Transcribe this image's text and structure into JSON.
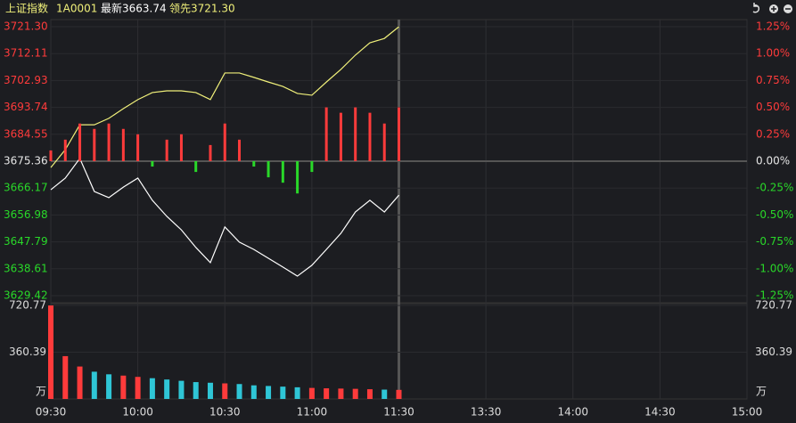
{
  "header": {
    "name": "上证指数",
    "code": "1A0001",
    "latest": "最新3663.74",
    "lead": "领先3721.30"
  },
  "chart_data": [
    {
      "type": "line",
      "x": [
        "09:30",
        "09:35",
        "09:40",
        "09:45",
        "09:50",
        "09:55",
        "10:00",
        "10:05",
        "10:10",
        "10:15",
        "10:20",
        "10:25",
        "10:30",
        "10:35",
        "10:40",
        "10:45",
        "10:50",
        "10:55",
        "11:00",
        "11:05",
        "11:10",
        "11:15",
        "11:20",
        "11:25",
        "11:30"
      ],
      "base": 3675.36,
      "up_color": "#ff3b3b",
      "down_color": "#29d829",
      "base_color": "#e6e6e6",
      "ylim": [
        3629.42,
        3721.3
      ],
      "yticks": [
        {
          "value": 3721.3,
          "label": "3721.30"
        },
        {
          "value": 3712.11,
          "label": "3712.11"
        },
        {
          "value": 3702.93,
          "label": "3702.93"
        },
        {
          "value": 3693.74,
          "label": "3693.74"
        },
        {
          "value": 3684.55,
          "label": "3684.55"
        },
        {
          "value": 3675.36,
          "label": "3675.36"
        },
        {
          "value": 3666.17,
          "label": "3666.17"
        },
        {
          "value": 3656.98,
          "label": "3656.98"
        },
        {
          "value": 3647.79,
          "label": "3647.79"
        },
        {
          "value": 3638.61,
          "label": "3638.61"
        },
        {
          "value": 3629.42,
          "label": "3629.42"
        }
      ],
      "y2lim": [
        -1.25,
        1.25
      ],
      "y2ticks": [
        {
          "value": 1.25,
          "label": "1.25%"
        },
        {
          "value": 1.0,
          "label": "1.00%"
        },
        {
          "value": 0.75,
          "label": "0.75%"
        },
        {
          "value": 0.5,
          "label": "0.50%"
        },
        {
          "value": 0.25,
          "label": "0.25%"
        },
        {
          "value": 0,
          "label": "0.00%"
        },
        {
          "value": -0.25,
          "label": "-0.25%"
        },
        {
          "value": -0.5,
          "label": "-0.50%"
        },
        {
          "value": -0.75,
          "label": "-0.75%"
        },
        {
          "value": -1.0,
          "label": "-1.00%"
        },
        {
          "value": -1.25,
          "label": "-1.25%"
        }
      ],
      "series": [
        {
          "color": "#ffffff",
          "values": [
            3665.6,
            3669.6,
            3676.3,
            3665.0,
            3662.9,
            3666.5,
            3669.6,
            3662.0,
            3656.5,
            3651.9,
            3645.9,
            3640.7,
            3652.9,
            3647.7,
            3645.2,
            3642.2,
            3639.2,
            3636.1,
            3639.8,
            3645.2,
            3650.7,
            3658.0,
            3662.0,
            3658.0,
            3663.74
          ]
        },
        {
          "color": "#f0f07a",
          "values": [
            3673.2,
            3679.3,
            3687.8,
            3687.8,
            3690.0,
            3693.3,
            3696.4,
            3698.8,
            3699.4,
            3699.4,
            3698.8,
            3696.4,
            3705.5,
            3705.5,
            3704.0,
            3702.4,
            3700.9,
            3698.5,
            3697.9,
            3702.4,
            3706.7,
            3711.6,
            3715.8,
            3717.3,
            3721.3
          ]
        },
        {
          "type": "bar",
          "axis": "y2",
          "values": [
            0.1,
            0.2,
            0.35,
            0.3,
            0.35,
            0.3,
            0.25,
            -0.05,
            0.2,
            0.25,
            -0.1,
            0.15,
            0.35,
            0.2,
            -0.05,
            -0.15,
            -0.2,
            -0.3,
            -0.1,
            0.5,
            0.45,
            0.5,
            0.45,
            0.35,
            0.5
          ]
        }
      ]
    },
    {
      "type": "bar",
      "unit": "万",
      "ylim": [
        0,
        720.77
      ],
      "yticks": [
        720.77,
        360.39
      ],
      "xticks": [
        "09:30",
        "10:00",
        "10:30",
        "11:00",
        "11:30",
        "13:30",
        "14:00",
        "14:30",
        "15:00"
      ],
      "values": [
        720.77,
        330,
        250,
        210,
        190,
        180,
        170,
        160,
        150,
        140,
        130,
        125,
        120,
        115,
        105,
        100,
        95,
        90,
        85,
        82,
        80,
        78,
        75,
        72,
        70
      ],
      "colors": [
        "#ff3b3b",
        "#ff3b3b",
        "#ff3b3b",
        "#2fc6d6",
        "#2fc6d6",
        "#ff3b3b",
        "#ff3b3b",
        "#2fc6d6",
        "#2fc6d6",
        "#2fc6d6",
        "#2fc6d6",
        "#2fc6d6",
        "#ff3b3b",
        "#2fc6d6",
        "#2fc6d6",
        "#2fc6d6",
        "#2fc6d6",
        "#2fc6d6",
        "#ff3b3b",
        "#ff3b3b",
        "#ff3b3b",
        "#ff3b3b",
        "#ff3b3b",
        "#2fc6d6",
        "#ff3b3b"
      ]
    }
  ]
}
